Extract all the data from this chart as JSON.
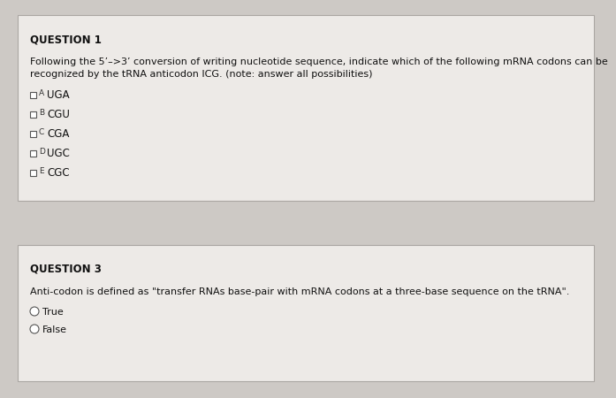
{
  "bg_color": "#cdc9c5",
  "card_color": "#edeae7",
  "card_border_color": "#aaa6a2",
  "q1_title": "QUESTION 1",
  "q1_body_line1": "Following the 5’–>3’ conversion of writing nucleotide sequence, indicate which of the following mRNA codons can be",
  "q1_body_line2": "recognized by the tRNA anticodon ICG. (note: answer all possibilities)",
  "q1_options": [
    {
      "label": "A",
      "text": "UGA"
    },
    {
      "label": "B",
      "text": "CGU"
    },
    {
      "label": "C",
      "text": "CGA"
    },
    {
      "label": "D",
      "text": "UGC"
    },
    {
      "label": "E",
      "text": "CGC"
    }
  ],
  "q3_title": "QUESTION 3",
  "q3_body": "Anti-codon is defined as \"transfer RNAs base-pair with mRNA codons at a three-base sequence on the tRNA\".",
  "q3_options": [
    "True",
    "False"
  ],
  "title_fontsize": 8.5,
  "body_fontsize": 8.0,
  "option_label_fontsize": 6.5,
  "option_text_fontsize": 8.5
}
